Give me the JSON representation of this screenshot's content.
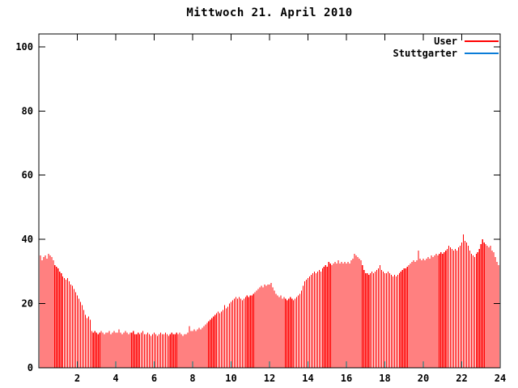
{
  "title": "Mittwoch 21. April 2010",
  "colors": {
    "background": "#ffffff",
    "axis": "#000000",
    "user_series": "#ff0000",
    "stuttgarter_series": "#0a7cd8"
  },
  "legend": [
    {
      "label": "User",
      "color": "#ff0000"
    },
    {
      "label": "Stuttgarter",
      "color": "#0a7cd8"
    }
  ],
  "chart_data": {
    "type": "bar",
    "title": "Mittwoch 21. April 2010",
    "xlabel": "",
    "ylabel": "",
    "xlim": [
      0,
      24
    ],
    "ylim": [
      0,
      104
    ],
    "x_ticks": [
      2,
      4,
      6,
      8,
      10,
      12,
      14,
      16,
      18,
      20,
      22,
      24
    ],
    "y_ticks": [
      0,
      20,
      40,
      60,
      80,
      100
    ],
    "x_unit": "hour of day",
    "interval_minutes": 5,
    "grid": false,
    "legend_position": "top-right",
    "bar_style": "impulses",
    "series": [
      {
        "name": "User",
        "color": "#ff0000",
        "values": [
          35,
          33.5,
          34.5,
          35,
          34,
          35.5,
          35,
          34.5,
          33.5,
          32,
          31.5,
          31,
          30,
          29.5,
          28.5,
          28,
          27.5,
          28,
          27,
          26,
          25.5,
          24.5,
          23.5,
          22.5,
          21.5,
          20.5,
          19.5,
          18,
          16.5,
          15.5,
          16,
          15,
          11.5,
          11,
          11.5,
          11,
          10.5,
          11,
          11.5,
          11,
          10.5,
          11,
          11,
          11.5,
          10.5,
          11,
          11.5,
          11,
          11,
          12,
          11,
          10.5,
          11,
          11.5,
          11,
          10.5,
          11,
          11,
          11.5,
          10.5,
          10.5,
          11,
          10.5,
          11,
          11.5,
          10.5,
          10.5,
          11,
          10.5,
          10,
          10.5,
          11,
          10.5,
          10,
          10.5,
          11,
          10.5,
          10.5,
          11,
          10.5,
          10,
          10.5,
          11,
          10.5,
          10.5,
          11,
          10.5,
          11,
          10.5,
          10,
          10.5,
          10.5,
          11,
          13,
          11.5,
          11.5,
          12,
          11.5,
          12,
          12.5,
          12,
          12.5,
          13,
          13.5,
          14,
          14.5,
          15,
          15.5,
          16,
          16.5,
          17,
          17.5,
          17,
          17.5,
          18,
          19.5,
          18.5,
          19,
          20,
          20.5,
          21,
          21.5,
          22,
          21.5,
          22,
          21.5,
          21,
          21.5,
          22,
          22.5,
          22,
          22.5,
          22.5,
          23,
          23.5,
          24,
          24.5,
          25,
          25.5,
          25,
          26,
          25.5,
          26,
          26,
          26.5,
          25,
          24,
          23,
          22.5,
          22,
          22.5,
          21.5,
          22,
          21.5,
          21,
          21.5,
          22,
          21.5,
          21,
          21.5,
          22,
          22.5,
          23,
          24,
          25.5,
          27,
          27.5,
          28,
          28.5,
          29,
          29.5,
          30,
          29.5,
          30,
          30.5,
          30,
          31,
          31.5,
          32,
          31.5,
          33,
          32.5,
          32,
          32.5,
          33,
          32.5,
          33.5,
          32.5,
          33,
          32.5,
          33,
          32.5,
          33,
          32.5,
          33.5,
          34,
          35.5,
          35,
          34.5,
          34,
          33.5,
          32,
          30.5,
          29.5,
          29.5,
          29,
          29.5,
          30,
          29.5,
          30,
          30.5,
          31,
          32,
          30.5,
          30,
          29.5,
          29.5,
          30,
          29.5,
          29,
          28.5,
          29,
          28.5,
          29,
          29.5,
          30,
          30.5,
          31,
          31,
          31.5,
          32,
          32.5,
          33,
          33.5,
          33,
          33.5,
          36.5,
          34,
          33.5,
          34,
          33.5,
          34,
          34.5,
          34,
          35,
          34.5,
          35,
          35.5,
          35,
          35.5,
          36,
          35.5,
          36,
          36.5,
          37,
          38,
          37.5,
          37,
          36.5,
          37,
          36.5,
          37.5,
          38,
          39,
          41.5,
          39.5,
          39,
          38,
          36.5,
          35.5,
          35,
          34.5,
          35.5,
          36,
          37,
          38.5,
          40,
          39,
          38.5,
          38,
          37.5,
          38,
          36.5,
          36,
          34.5,
          33,
          32,
          31.5
        ]
      },
      {
        "name": "Stuttgarter",
        "color": "#0a7cd8",
        "values": []
      }
    ]
  }
}
